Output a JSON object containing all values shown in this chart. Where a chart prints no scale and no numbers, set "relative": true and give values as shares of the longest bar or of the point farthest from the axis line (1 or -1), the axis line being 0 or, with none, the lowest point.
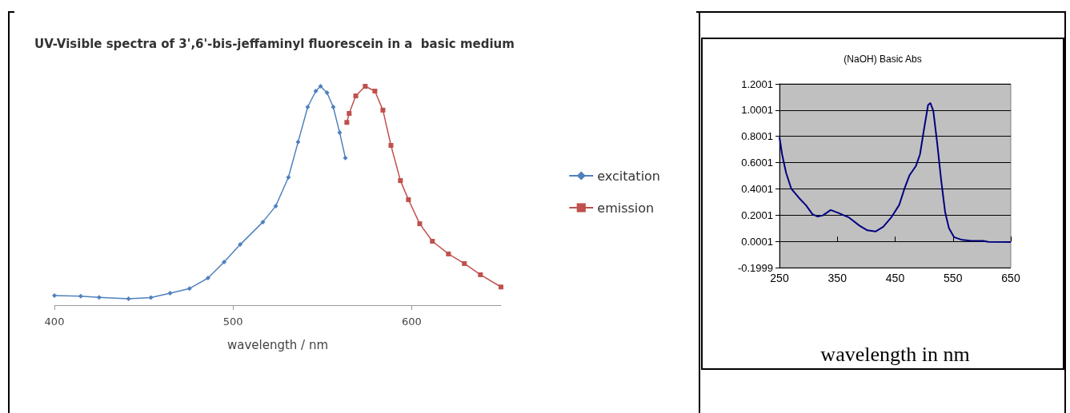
{
  "chart_data": [
    {
      "type": "line",
      "title": "UV-Visible spectra of 3',6'-bis-jeffaminyl fluorescein in a  basic medium",
      "xlabel": "wavelength / nm",
      "relative": true,
      "xlim": [
        400,
        650
      ],
      "xticks": [
        400,
        500,
        600
      ],
      "tick_labels": "x",
      "grid": false,
      "legend": "right",
      "series": [
        {
          "name": "excitation",
          "color": "#4f81bd",
          "marker": "diamond",
          "x": [
            400,
            414.7,
            425,
            441.5,
            454,
            464.8,
            475.6,
            486,
            495,
            504,
            516.7,
            523.9,
            531,
            536.4,
            541.8,
            546.3,
            549,
            552.6,
            556.1,
            559.7,
            562.9
          ],
          "values": [
            0.044,
            0.041,
            0.036,
            0.029,
            0.035,
            0.055,
            0.076,
            0.124,
            0.197,
            0.277,
            0.38,
            0.453,
            0.584,
            0.745,
            0.905,
            0.978,
            1,
            0.971,
            0.905,
            0.788,
            0.672
          ]
        },
        {
          "name": "emission",
          "color": "#c0504d",
          "marker": "square",
          "x": [
            563.7,
            565,
            568.7,
            574,
            579.4,
            583.9,
            588.4,
            593.7,
            598.2,
            604.5,
            611.6,
            620.6,
            629.5,
            638.5,
            650
          ],
          "values": [
            0.835,
            0.876,
            0.956,
            1,
            0.978,
            0.891,
            0.73,
            0.569,
            0.482,
            0.372,
            0.292,
            0.234,
            0.19,
            0.139,
            0.083
          ]
        }
      ]
    },
    {
      "type": "line",
      "title": "(NaOH) Basic Abs",
      "xlabel": "wavelength in nm",
      "xlim": [
        250,
        650
      ],
      "xticks": [
        250,
        350,
        450,
        550,
        650
      ],
      "ylim": [
        -0.1999,
        1.2001
      ],
      "yticks": [
        -0.1999,
        0.0001,
        0.2001,
        0.4001,
        0.6001,
        0.8001,
        1.0001,
        1.2001
      ],
      "grid": "y",
      "legend": false,
      "series": [
        {
          "color": "#000080",
          "x": [
            250,
            254.5,
            261.4,
            270.5,
            284,
            295.5,
            307,
            316,
            325,
            338.6,
            352,
            370.5,
            388.6,
            402,
            416,
            429.5,
            443,
            457,
            466,
            475,
            486,
            493,
            500,
            507,
            511,
            516,
            522.7,
            529.5,
            536.4,
            543,
            552,
            566,
            579.5,
            602,
            611,
            650
          ],
          "values": [
            0.795,
            0.663,
            0.523,
            0.4,
            0.33,
            0.277,
            0.207,
            0.189,
            0.198,
            0.239,
            0.216,
            0.181,
            0.119,
            0.084,
            0.075,
            0.111,
            0.181,
            0.277,
            0.4,
            0.505,
            0.575,
            0.663,
            0.856,
            1.04,
            1.053,
            0.996,
            0.751,
            0.47,
            0.225,
            0.102,
            0.032,
            0.011,
            0.005,
            0.004,
            -0.003,
            -0.005
          ]
        }
      ]
    }
  ]
}
